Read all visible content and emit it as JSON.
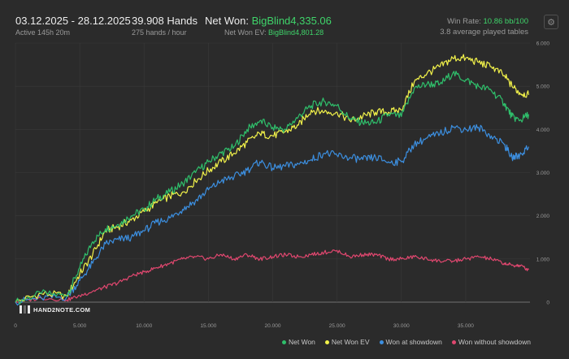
{
  "header": {
    "date_range": "03.12.2025 - 28.12.2025",
    "active": "Active 145h 20m",
    "hands": "39.908 Hands",
    "hands_per_hour": "275 hands / hour",
    "net_won_label": "Net Won:",
    "net_won_value": "BigBlind4,335.06",
    "net_won_ev_label": "Net Won  EV:",
    "net_won_ev_value": "BigBlind4,801.28",
    "win_rate_label": "Win Rate:",
    "win_rate_value": "10.86 bb/100",
    "tables": "3.8 average played tables"
  },
  "settings_icon": "gear-icon",
  "logo_text": "HAND2NOTE.COM",
  "colors": {
    "background": "#2b2b2b",
    "net_won": "#2fbf6b",
    "net_won_ev": "#f2f24a",
    "won_at_showdown": "#3c8fe0",
    "won_without_showdown": "#e0476f",
    "accent_green": "#3fd46a"
  },
  "legend": [
    "Net Won",
    "Net Won  EV",
    "Won at showdown",
    "Won without showdown"
  ],
  "chart_data": {
    "type": "line",
    "x_ticks": [
      "0",
      "5.000",
      "10.000",
      "15.000",
      "20.000",
      "25.000",
      "30.000",
      "35.000"
    ],
    "y_ticks": [
      "0",
      "1.000",
      "2.000",
      "3.000",
      "4.000",
      "5.000",
      "6.000"
    ],
    "xlim": [
      0,
      40000
    ],
    "ylim": [
      0,
      6000
    ],
    "grid": true,
    "legend_position": "bottom-right",
    "series": [
      {
        "name": "Net Won",
        "color_key": "net_won",
        "x": [
          0,
          2000,
          4000,
          5000,
          6000,
          7000,
          8000,
          9000,
          10000,
          11000,
          12000,
          13000,
          14000,
          15000,
          16000,
          17000,
          18000,
          19000,
          20000,
          21000,
          22000,
          23000,
          24000,
          25000,
          26000,
          27000,
          28000,
          29000,
          30000,
          31000,
          32000,
          33000,
          34000,
          35000,
          36000,
          37000,
          38000,
          38600,
          39200,
          39900
        ],
        "y": [
          0,
          200,
          150,
          800,
          1400,
          1700,
          1800,
          2000,
          2150,
          2400,
          2550,
          2750,
          3000,
          3250,
          3450,
          3600,
          4000,
          4200,
          4050,
          4000,
          4300,
          4550,
          4650,
          4550,
          4250,
          4150,
          4150,
          4350,
          4300,
          4950,
          5050,
          5050,
          5300,
          5150,
          5000,
          4900,
          4600,
          4300,
          4200,
          4350
        ]
      },
      {
        "name": "Net Won  EV",
        "color_key": "net_won_ev",
        "x": [
          0,
          2000,
          4000,
          5000,
          6000,
          7000,
          8000,
          9000,
          10000,
          11000,
          12000,
          13000,
          14000,
          15000,
          16000,
          17000,
          18000,
          19000,
          20000,
          21000,
          22000,
          23000,
          24000,
          25000,
          26000,
          27000,
          28000,
          29000,
          30000,
          31000,
          32000,
          33000,
          34000,
          35000,
          36000,
          37000,
          38000,
          38600,
          39200,
          39900
        ],
        "y": [
          0,
          200,
          150,
          650,
          1100,
          1650,
          1750,
          1900,
          2100,
          2300,
          2450,
          2550,
          2800,
          3050,
          3250,
          3450,
          3700,
          3900,
          3850,
          3950,
          4100,
          4450,
          4400,
          4400,
          4200,
          4300,
          4400,
          4400,
          4450,
          5100,
          5300,
          5450,
          5650,
          5650,
          5550,
          5450,
          5250,
          5000,
          4850,
          4800
        ]
      },
      {
        "name": "Won at showdown",
        "color_key": "won_at_showdown",
        "x": [
          0,
          2000,
          4000,
          5000,
          6000,
          7000,
          8000,
          9000,
          10000,
          11000,
          12000,
          13000,
          14000,
          15000,
          16000,
          17000,
          18000,
          19000,
          20000,
          21000,
          22000,
          23000,
          24000,
          25000,
          26000,
          27000,
          28000,
          29000,
          30000,
          31000,
          32000,
          33000,
          34000,
          35000,
          36000,
          37000,
          38000,
          38600,
          39200,
          39900
        ],
        "y": [
          0,
          100,
          120,
          500,
          900,
          1350,
          1450,
          1500,
          1650,
          1850,
          1950,
          2150,
          2350,
          2600,
          2800,
          2900,
          3050,
          3250,
          3100,
          3150,
          3200,
          3300,
          3450,
          3400,
          3350,
          3300,
          3350,
          3250,
          3250,
          3650,
          3800,
          3900,
          4050,
          4000,
          4050,
          3850,
          3650,
          3350,
          3400,
          3600
        ]
      },
      {
        "name": "Won without showdown",
        "color_key": "won_without_showdown",
        "x": [
          0,
          2000,
          4000,
          5000,
          6000,
          7000,
          8000,
          9000,
          10000,
          11000,
          12000,
          13000,
          14000,
          15000,
          16000,
          17000,
          18000,
          19000,
          20000,
          21000,
          22000,
          23000,
          24000,
          25000,
          26000,
          27000,
          28000,
          29000,
          30000,
          31000,
          32000,
          33000,
          34000,
          35000,
          36000,
          37000,
          38000,
          38600,
          39200,
          39900
        ],
        "y": [
          0,
          100,
          50,
          150,
          250,
          350,
          450,
          600,
          700,
          800,
          900,
          1000,
          1050,
          1000,
          1100,
          1000,
          1100,
          1000,
          1050,
          1100,
          1050,
          1100,
          1150,
          1200,
          1050,
          1100,
          1100,
          1000,
          1000,
          1050,
          1000,
          950,
          950,
          1000,
          1050,
          1000,
          900,
          850,
          850,
          750
        ]
      }
    ]
  }
}
